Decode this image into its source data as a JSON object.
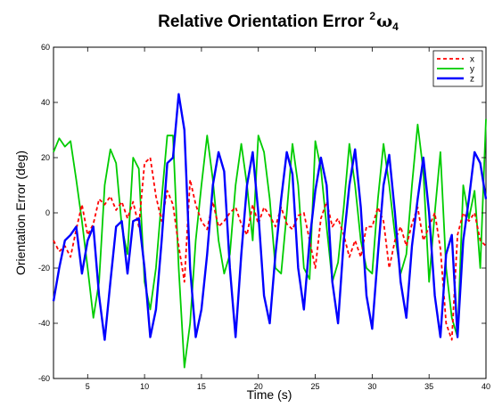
{
  "chart_data": {
    "type": "line",
    "title": "Relative Orientation Error",
    "title_superscript": "2",
    "title_symbol": "ω",
    "title_subscript": "4",
    "xlabel": "Time (s)",
    "ylabel": "Orientation Error (deg)",
    "xlim": [
      2,
      40
    ],
    "ylim": [
      -60,
      60
    ],
    "xticks": [
      5,
      10,
      15,
      20,
      25,
      30,
      35,
      40
    ],
    "yticks": [
      -60,
      -40,
      -20,
      0,
      20,
      40,
      60
    ],
    "grid": false,
    "legend_position": "top-right",
    "series": [
      {
        "name": "x",
        "color": "#ff0000",
        "style": "dashed",
        "points": [
          [
            2,
            -10
          ],
          [
            2.5,
            -14
          ],
          [
            3,
            -12
          ],
          [
            3.5,
            -16
          ],
          [
            4,
            -6
          ],
          [
            4.5,
            3
          ],
          [
            5,
            -8
          ],
          [
            5.5,
            -4
          ],
          [
            6,
            5
          ],
          [
            6.5,
            3
          ],
          [
            7,
            6
          ],
          [
            7.5,
            1
          ],
          [
            8,
            4
          ],
          [
            8.5,
            -2
          ],
          [
            9,
            4
          ],
          [
            9.5,
            -5
          ],
          [
            10,
            18
          ],
          [
            10.5,
            20
          ],
          [
            11,
            6
          ],
          [
            11.5,
            -3
          ],
          [
            12,
            8
          ],
          [
            12.5,
            3
          ],
          [
            13,
            -12
          ],
          [
            13.5,
            -25
          ],
          [
            14,
            12
          ],
          [
            14.5,
            3
          ],
          [
            15,
            -3
          ],
          [
            15.5,
            -6
          ],
          [
            16,
            4
          ],
          [
            16.5,
            -5
          ],
          [
            17,
            -3
          ],
          [
            17.5,
            0
          ],
          [
            18,
            2
          ],
          [
            18.5,
            -4
          ],
          [
            19,
            -8
          ],
          [
            19.5,
            3
          ],
          [
            20,
            -4
          ],
          [
            20.5,
            2
          ],
          [
            21,
            -1
          ],
          [
            21.5,
            -5
          ],
          [
            22,
            2
          ],
          [
            22.5,
            -4
          ],
          [
            23,
            -6
          ],
          [
            23.5,
            -1
          ],
          [
            24,
            0
          ],
          [
            24.5,
            -10
          ],
          [
            25,
            -20
          ],
          [
            25.5,
            -2
          ],
          [
            26,
            4
          ],
          [
            26.5,
            -5
          ],
          [
            27,
            -2
          ],
          [
            27.5,
            -8
          ],
          [
            28,
            -16
          ],
          [
            28.5,
            -10
          ],
          [
            29,
            -16
          ],
          [
            29.5,
            -5
          ],
          [
            30,
            -5
          ],
          [
            30.5,
            2
          ],
          [
            31,
            -3
          ],
          [
            31.5,
            -20
          ],
          [
            32,
            -10
          ],
          [
            32.5,
            -5
          ],
          [
            33,
            -12
          ],
          [
            33.5,
            -4
          ],
          [
            34,
            2
          ],
          [
            34.5,
            -10
          ],
          [
            35,
            -5
          ],
          [
            35.5,
            0
          ],
          [
            36,
            -13
          ],
          [
            36.5,
            -40
          ],
          [
            37,
            -46
          ],
          [
            37.5,
            -8
          ],
          [
            38,
            0
          ],
          [
            38.5,
            -3
          ],
          [
            39,
            0
          ],
          [
            39.5,
            -10
          ],
          [
            40,
            -12
          ]
        ]
      },
      {
        "name": "y",
        "color": "#00cc00",
        "style": "solid",
        "points": [
          [
            2,
            22
          ],
          [
            2.5,
            27
          ],
          [
            3,
            24
          ],
          [
            3.5,
            26
          ],
          [
            4,
            12
          ],
          [
            4.5,
            -3
          ],
          [
            5,
            -20
          ],
          [
            5.5,
            -38
          ],
          [
            6,
            -25
          ],
          [
            6.5,
            10
          ],
          [
            7,
            23
          ],
          [
            7.5,
            18
          ],
          [
            8,
            -5
          ],
          [
            8.5,
            -15
          ],
          [
            9,
            20
          ],
          [
            9.5,
            16
          ],
          [
            10,
            -25
          ],
          [
            10.5,
            -35
          ],
          [
            11,
            -20
          ],
          [
            11.5,
            5
          ],
          [
            12,
            28
          ],
          [
            12.5,
            28
          ],
          [
            13,
            -20
          ],
          [
            13.5,
            -56
          ],
          [
            14,
            -40
          ],
          [
            14.5,
            -10
          ],
          [
            15,
            10
          ],
          [
            15.5,
            28
          ],
          [
            16,
            12
          ],
          [
            16.5,
            -10
          ],
          [
            17,
            -22
          ],
          [
            17.5,
            -15
          ],
          [
            18,
            10
          ],
          [
            18.5,
            25
          ],
          [
            19,
            10
          ],
          [
            19.5,
            -10
          ],
          [
            20,
            28
          ],
          [
            20.5,
            22
          ],
          [
            21,
            5
          ],
          [
            21.5,
            -20
          ],
          [
            22,
            -22
          ],
          [
            22.5,
            0
          ],
          [
            23,
            25
          ],
          [
            23.5,
            10
          ],
          [
            24,
            -20
          ],
          [
            24.5,
            -24
          ],
          [
            25,
            26
          ],
          [
            25.5,
            16
          ],
          [
            26,
            -5
          ],
          [
            26.5,
            -25
          ],
          [
            27,
            -18
          ],
          [
            27.5,
            2
          ],
          [
            28,
            25
          ],
          [
            28.5,
            10
          ],
          [
            29,
            -10
          ],
          [
            29.5,
            -20
          ],
          [
            30,
            -22
          ],
          [
            30.5,
            5
          ],
          [
            31,
            25
          ],
          [
            31.5,
            10
          ],
          [
            32,
            -8
          ],
          [
            32.5,
            -22
          ],
          [
            33,
            -15
          ],
          [
            33.5,
            10
          ],
          [
            34,
            32
          ],
          [
            34.5,
            15
          ],
          [
            35,
            -25
          ],
          [
            35.5,
            0
          ],
          [
            36,
            22
          ],
          [
            36.5,
            -20
          ],
          [
            37,
            -38
          ],
          [
            37.5,
            -45
          ],
          [
            38,
            10
          ],
          [
            38.5,
            -2
          ],
          [
            39,
            8
          ],
          [
            39.5,
            -20
          ],
          [
            40,
            34
          ]
        ]
      },
      {
        "name": "z",
        "color": "#0000ff",
        "style": "solid",
        "points": [
          [
            2,
            -32
          ],
          [
            2.5,
            -20
          ],
          [
            3,
            -10
          ],
          [
            3.5,
            -8
          ],
          [
            4,
            -5
          ],
          [
            4.5,
            -22
          ],
          [
            5,
            -10
          ],
          [
            5.5,
            -5
          ],
          [
            6,
            -30
          ],
          [
            6.5,
            -46
          ],
          [
            7,
            -25
          ],
          [
            7.5,
            -5
          ],
          [
            8,
            -3
          ],
          [
            8.5,
            -22
          ],
          [
            9,
            -3
          ],
          [
            9.5,
            -2
          ],
          [
            10,
            -20
          ],
          [
            10.5,
            -45
          ],
          [
            11,
            -35
          ],
          [
            11.5,
            -10
          ],
          [
            12,
            18
          ],
          [
            12.5,
            20
          ],
          [
            13,
            43
          ],
          [
            13.5,
            30
          ],
          [
            14,
            -20
          ],
          [
            14.5,
            -45
          ],
          [
            15,
            -35
          ],
          [
            15.5,
            -15
          ],
          [
            16,
            10
          ],
          [
            16.5,
            22
          ],
          [
            17,
            15
          ],
          [
            17.5,
            -20
          ],
          [
            18,
            -45
          ],
          [
            18.5,
            -15
          ],
          [
            19,
            10
          ],
          [
            19.5,
            22
          ],
          [
            20,
            0
          ],
          [
            20.5,
            -30
          ],
          [
            21,
            -40
          ],
          [
            21.5,
            -15
          ],
          [
            22,
            5
          ],
          [
            22.5,
            22
          ],
          [
            23,
            14
          ],
          [
            23.5,
            -20
          ],
          [
            24,
            -35
          ],
          [
            24.5,
            -10
          ],
          [
            25,
            8
          ],
          [
            25.5,
            20
          ],
          [
            26,
            10
          ],
          [
            26.5,
            -25
          ],
          [
            27,
            -40
          ],
          [
            27.5,
            -10
          ],
          [
            28,
            10
          ],
          [
            28.5,
            23
          ],
          [
            29,
            2
          ],
          [
            29.5,
            -30
          ],
          [
            30,
            -42
          ],
          [
            30.5,
            -15
          ],
          [
            31,
            10
          ],
          [
            31.5,
            21
          ],
          [
            32,
            0
          ],
          [
            32.5,
            -25
          ],
          [
            33,
            -38
          ],
          [
            33.5,
            -12
          ],
          [
            34,
            5
          ],
          [
            34.5,
            20
          ],
          [
            35,
            0
          ],
          [
            35.5,
            -30
          ],
          [
            36,
            -45
          ],
          [
            36.5,
            -15
          ],
          [
            37,
            -8
          ],
          [
            37.5,
            -45
          ],
          [
            38,
            -10
          ],
          [
            38.5,
            5
          ],
          [
            39,
            22
          ],
          [
            39.5,
            18
          ],
          [
            40,
            5
          ]
        ]
      }
    ]
  }
}
